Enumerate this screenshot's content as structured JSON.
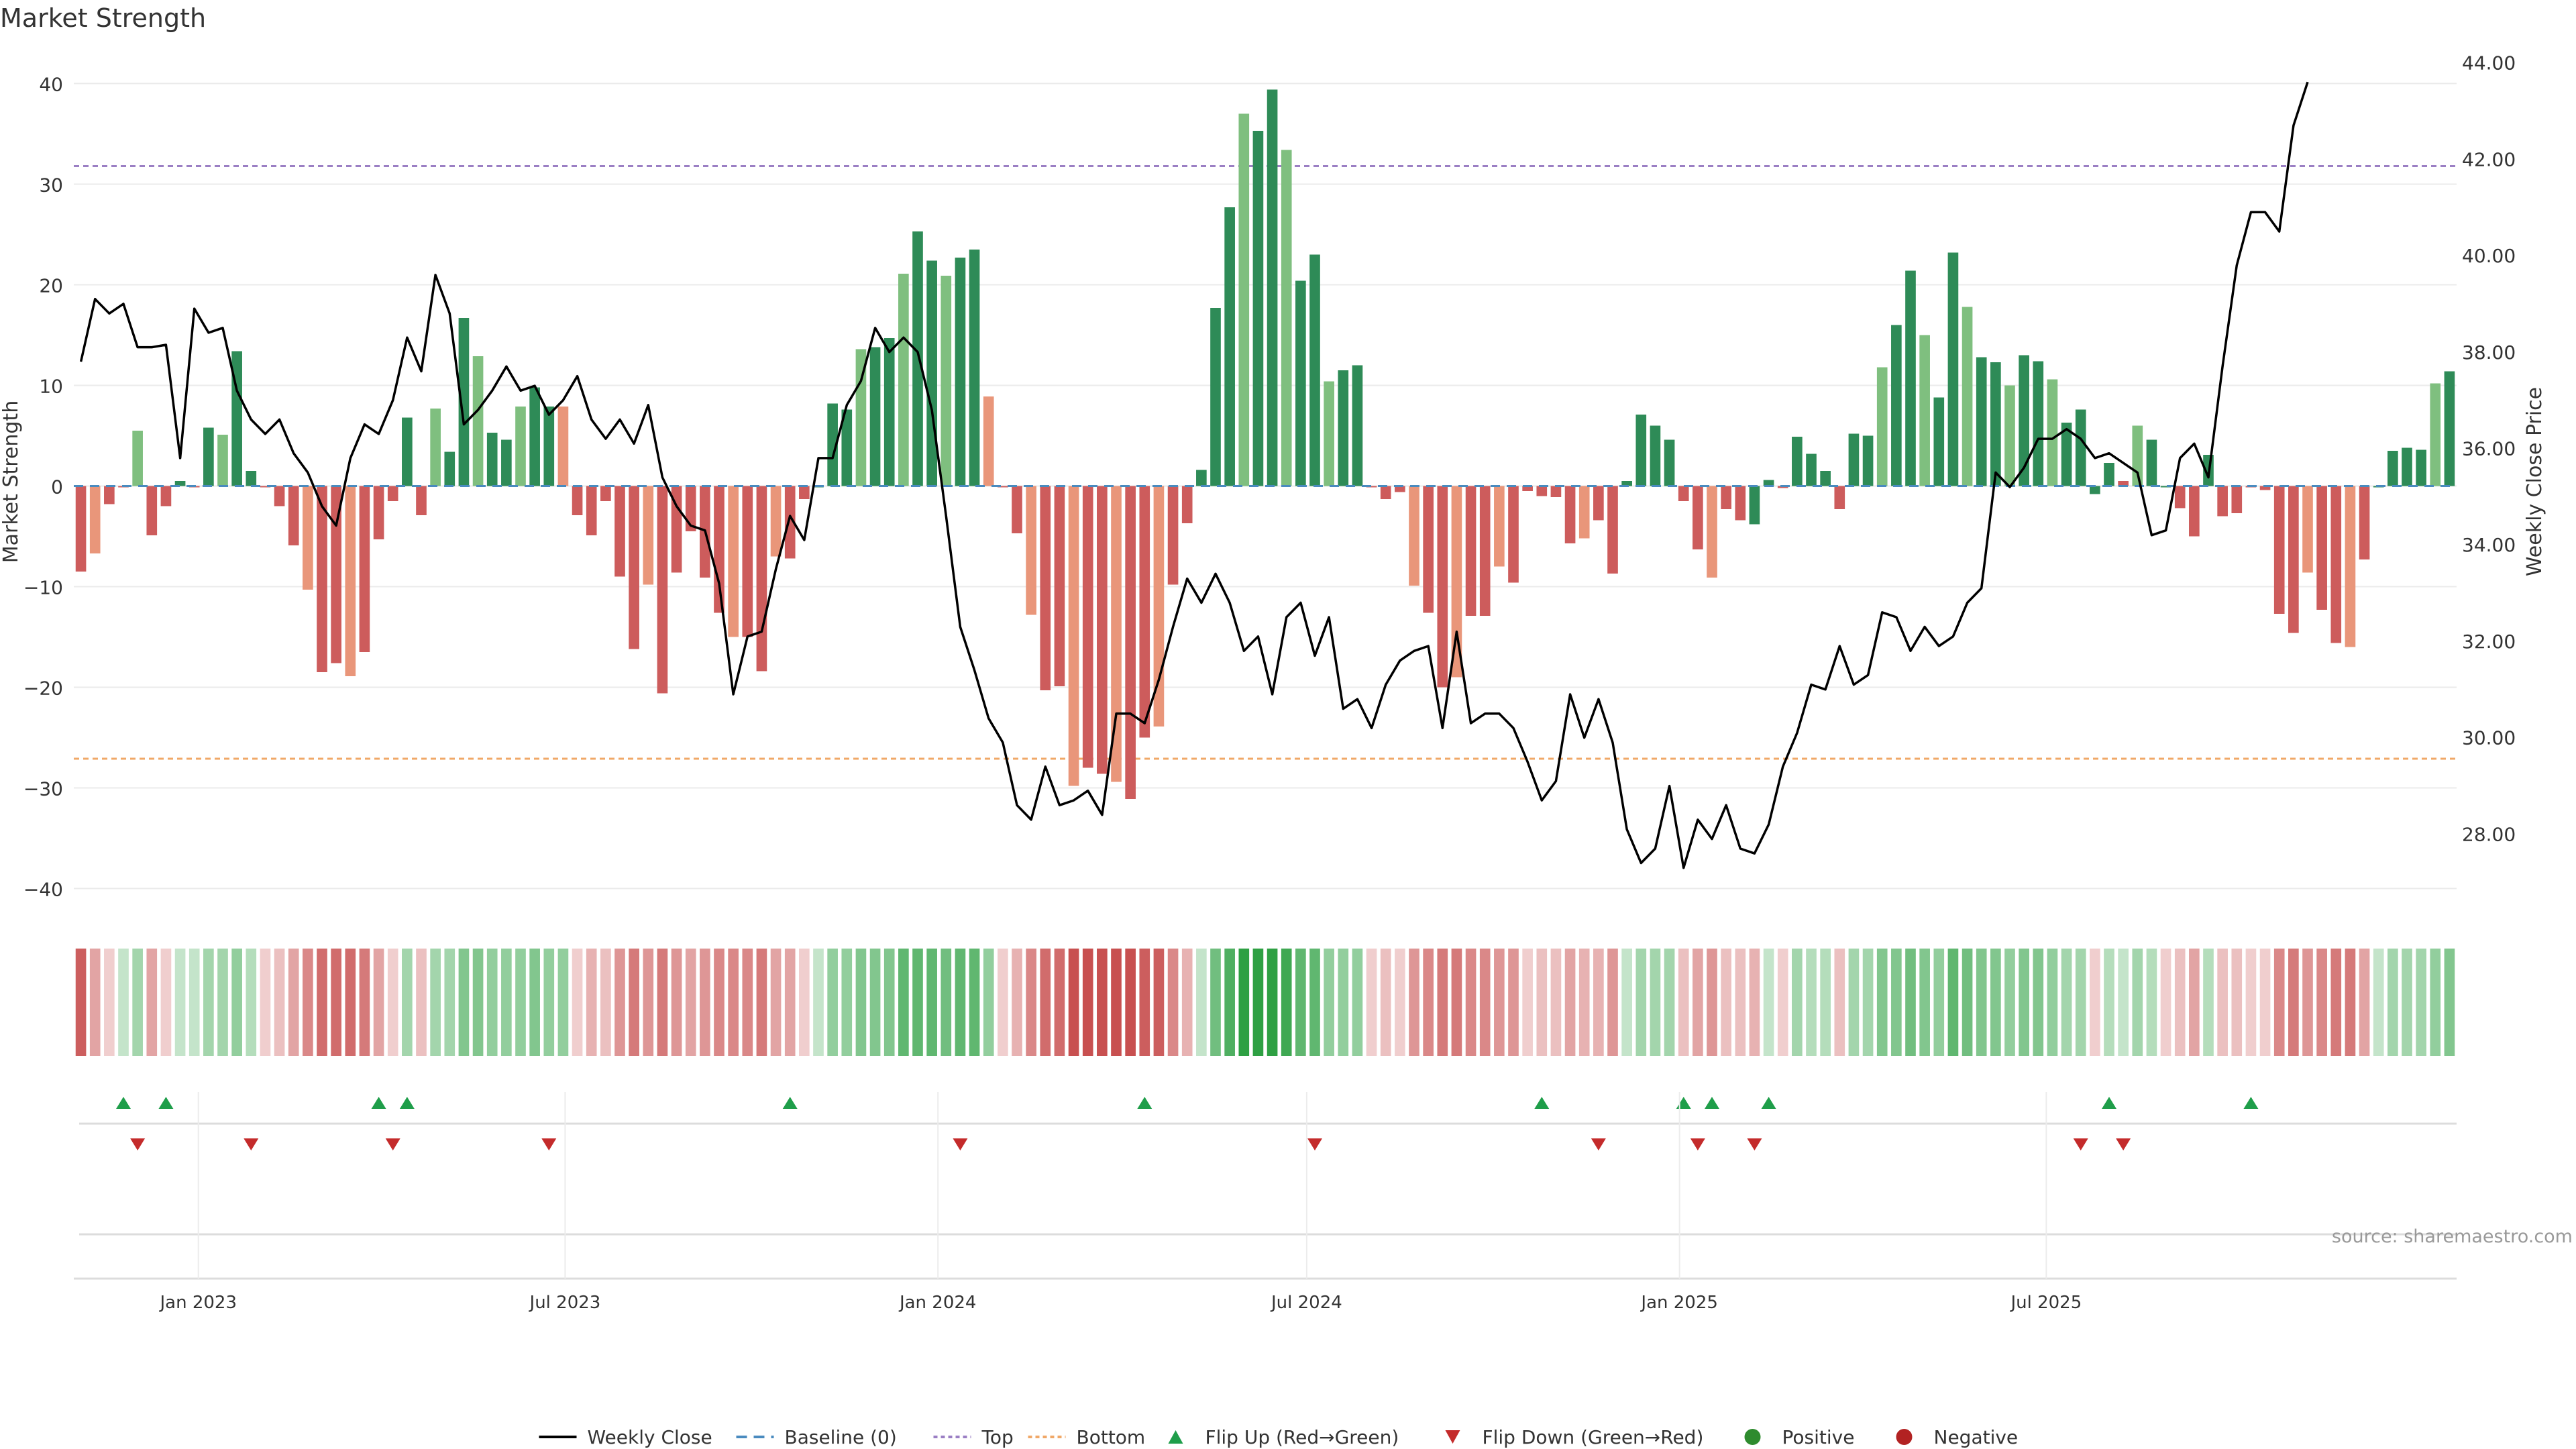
{
  "chart_data": {
    "type": "bar",
    "title": "Market Strength",
    "ylabel_left": "Market Strength",
    "ylabel_right": "Weekly Close Price",
    "source": "source: sharemaestro.com",
    "left_axis": {
      "ylim": [
        -42.5,
        43.5
      ],
      "ticks": [
        40,
        30,
        20,
        10,
        0,
        -10,
        -20,
        -30,
        -40
      ],
      "tick_labels": [
        "40",
        "30",
        "20",
        "10",
        "0",
        "−10",
        "−20",
        "−30",
        "−40"
      ]
    },
    "right_axis": {
      "ylim": [
        26.35,
        44.3
      ],
      "ticks": [
        44,
        42,
        40,
        38,
        36,
        34,
        32,
        30,
        28
      ],
      "tick_labels": [
        "44.00",
        "42.00",
        "40.00",
        "38.00",
        "36.00",
        "34.00",
        "32.00",
        "30.00",
        "28.00"
      ]
    },
    "x_axis": {
      "start": "2022-11-04",
      "step_days": 7,
      "ticks": [
        {
          "label": "Jan 2023",
          "date": "2023-01-01"
        },
        {
          "label": "Jul 2023",
          "date": "2023-07-01"
        },
        {
          "label": "Jan 2024",
          "date": "2024-01-01"
        },
        {
          "label": "Jul 2024",
          "date": "2024-07-01"
        },
        {
          "label": "Jan 2025",
          "date": "2025-01-01"
        },
        {
          "label": "Jul 2025",
          "date": "2025-07-01"
        }
      ]
    },
    "reference_lines": [
      {
        "name": "Top",
        "value": 31.8,
        "color": "#9b7fc4"
      },
      {
        "name": "Bottom",
        "value": -27.1,
        "color": "#f0a868"
      }
    ],
    "strength": [
      -8.5,
      -6.7,
      -1.8,
      0,
      5.5,
      -4.9,
      -2.0,
      0.5,
      0,
      5.8,
      5.1,
      13.4,
      1.5,
      0,
      -2.0,
      -5.9,
      -10.3,
      -18.5,
      -17.6,
      -18.9,
      -16.5,
      -5.3,
      -1.5,
      6.8,
      -2.9,
      7.7,
      3.4,
      16.7,
      12.9,
      5.3,
      4.6,
      7.9,
      9.8,
      7.9,
      7.9,
      -2.9,
      -4.9,
      -1.5,
      -9.0,
      -16.2,
      -9.8,
      -20.6,
      -8.6,
      -4.5,
      -9.1,
      -12.6,
      -15.0,
      -15.0,
      -18.4,
      -7.0,
      -7.2,
      -1.3,
      0,
      8.2,
      7.6,
      13.6,
      13.8,
      14.7,
      21.1,
      25.3,
      22.4,
      20.9,
      22.7,
      23.5,
      8.9,
      0,
      -4.7,
      -12.8,
      -20.3,
      -19.9,
      -29.8,
      -28.0,
      -28.6,
      -29.4,
      -31.1,
      -25.0,
      -23.9,
      -9.8,
      -3.7,
      1.6,
      17.7,
      27.7,
      37.0,
      35.3,
      39.4,
      33.4,
      20.4,
      23.0,
      10.4,
      11.5,
      12.0,
      0,
      -1.3,
      -0.6,
      -9.9,
      -12.6,
      -20.0,
      -19.0,
      -12.9,
      -12.9,
      -8.0,
      -9.6,
      -0.5,
      -1.0,
      -1.1,
      -5.7,
      -5.2,
      -3.4,
      -8.7,
      0.5,
      7.1,
      6.0,
      4.6,
      -1.5,
      -6.3,
      -9.1,
      -2.3,
      -3.4,
      -3.8,
      0.6,
      -0.2,
      4.9,
      3.2,
      1.5,
      -2.3,
      5.2,
      5.0,
      11.8,
      16.0,
      21.4,
      15.0,
      8.8,
      23.2,
      17.8,
      12.8,
      12.3,
      10.0,
      13.0,
      12.4,
      10.6,
      6.3,
      7.6,
      -0.8,
      2.3,
      0.5,
      6.0,
      4.6,
      0,
      -2.2,
      -5.0,
      3.1,
      -3.0,
      -2.7,
      0,
      -0.4,
      -12.7,
      -14.6,
      -8.6,
      -12.3,
      -15.6,
      -16.0,
      -7.3,
      0,
      3.5,
      3.8,
      3.6,
      10.2,
      11.4
    ],
    "bar_colors": "rrrrgrrgrggggrrrrrrrrrrgrgggggggggrrrrrrrrrrrrrrrrrrggggggggggggrrrrrrrrrrrrrrrggggggggggggrrrrrrrrrrrrrrrrrrggggrrrrrggrgggrgggggggggggggggggggrgggrrgrrrrrrrrrrrgggggg",
    "weekly_close": [
      37.8,
      39.1,
      38.8,
      39.0,
      38.1,
      38.1,
      38.15,
      35.8,
      38.9,
      38.4,
      38.5,
      37.2,
      36.6,
      36.3,
      36.6,
      35.9,
      35.5,
      34.8,
      34.4,
      35.8,
      36.5,
      36.3,
      37.0,
      38.3,
      37.6,
      39.6,
      38.8,
      36.5,
      36.8,
      37.2,
      37.7,
      37.2,
      37.3,
      36.7,
      37.0,
      37.5,
      36.6,
      36.2,
      36.6,
      36.1,
      36.9,
      35.4,
      34.8,
      34.4,
      34.3,
      33.2,
      30.9,
      32.1,
      32.2,
      33.5,
      34.6,
      34.1,
      35.8,
      35.8,
      36.9,
      37.4,
      38.5,
      38.0,
      38.3,
      38.0,
      36.8,
      34.6,
      32.3,
      31.4,
      30.4,
      29.9,
      28.6,
      28.3,
      29.4,
      28.6,
      28.7,
      28.9,
      28.4,
      30.5,
      30.5,
      30.3,
      31.2,
      32.3,
      33.3,
      32.8,
      33.4,
      32.8,
      31.8,
      32.1,
      30.9,
      32.5,
      32.8,
      31.7,
      32.5,
      30.6,
      30.8,
      30.2,
      31.1,
      31.6,
      31.8,
      31.9,
      30.2,
      32.2,
      30.3,
      30.5,
      30.5,
      30.2,
      29.5,
      28.7,
      29.1,
      30.9,
      30.0,
      30.8,
      29.9,
      28.1,
      27.4,
      27.7,
      29.0,
      27.3,
      28.3,
      27.9,
      28.6,
      27.7,
      27.6,
      28.2,
      29.4,
      30.1,
      31.1,
      31.0,
      31.9,
      31.1,
      31.3,
      32.6,
      32.5,
      31.8,
      32.3,
      31.9,
      32.1,
      32.8,
      33.1,
      35.5,
      35.2,
      35.6,
      36.2,
      36.2,
      36.4,
      36.2,
      35.8,
      35.9,
      35.7,
      35.5,
      34.2,
      34.3,
      35.8,
      36.1,
      35.4,
      37.7,
      39.8,
      40.9,
      40.9,
      40.5,
      42.7,
      43.6
    ],
    "strip_colors": "a-9 a-4 a-1 g-1 g-3 a-4 a-1 g-1 g-1 g-3 g-3 g-4 g-2 a-1 a-2 a-4 a-6 a-8 a-8 a-8 a-7 a-4 a-1 g-3 a-2 g-3 g-3 g-5 g-5 g-4 g-4 g-4 g-5 g-4 g-4 a-1 a-3 a-2 a-5 a-7 a-5 a-7 a-5 a-4 a-5 a-6 a-6 a-6 a-7 a-4 a-4 a-1 g-1 g-4 g-4 g-5 g-5 g-5 g-7 g-7 g-7 g-6 g-7 g-7 g-4 a-1 a-3 a-6 a-8 a-8 a-10 a-10 a-10 a-10 a-10 a-9 a-9 a-6 a-3 g-1 g-6 g-8 g-10 g-10 g-10 g-9 g-7 g-7 g-4 g-4 g-4 a-1 a-2 a-1 a-5 a-6 a-7 a-7 a-6 a-6 a-5 a-5 a-1 a-2 a-2 a-4 a-3 a-3 a-5 g-1 g-3 g-3 g-3 a-2 a-4 a-5 a-2 a-2 a-3 g-1 a-1 g-3 g-2 g-2 a-2 g-3 g-3 g-5 g-5 g-6 g-5 g-4 g-7 g-6 g-5 g-5 g-4 g-5 g-5 g-4 g-3 g-3 a-1 g-2 g-1 g-3 g-2 a-1 a-2 a-4 g-2 a-2 a-2 a-1 a-1 a-6 a-7 a-5 a-6 a-7 a-7 a-4 g-1 g-3 g-3 g-3 g-4 g-5",
    "flip_up_weeks": [
      3,
      6,
      21,
      23,
      50,
      75,
      103,
      113,
      115,
      119,
      143,
      153
    ],
    "flip_down_weeks": [
      4,
      12,
      22,
      33,
      62,
      87,
      107,
      114,
      118,
      141,
      144
    ],
    "legend": [
      {
        "label": "Weekly Close",
        "type": "line",
        "color": "#000000"
      },
      {
        "label": "Baseline (0)",
        "type": "dash",
        "color": "#4a8bbf"
      },
      {
        "label": "Top",
        "type": "dot",
        "color": "#9b7fc4"
      },
      {
        "label": "Bottom",
        "type": "dot",
        "color": "#f0a868"
      },
      {
        "label": "Flip Up (Red→Green)",
        "type": "tri-up",
        "color": "#1f9e4a"
      },
      {
        "label": "Flip Down (Green→Red)",
        "type": "tri-down",
        "color": "#c42b2b"
      },
      {
        "label": "Positive",
        "type": "circle",
        "color": "#2e8b2e"
      },
      {
        "label": "Negative",
        "type": "circle",
        "color": "#b22222"
      }
    ],
    "colors": {
      "bar_green_strong": "#2e8b57",
      "bar_green_light": "#7fbf7f",
      "bar_red_strong": "#cd5c5c",
      "bar_red_light": "#e9967a",
      "line": "#000000",
      "baseline": "#4a8bbf",
      "grid": "#ebebeb"
    }
  }
}
